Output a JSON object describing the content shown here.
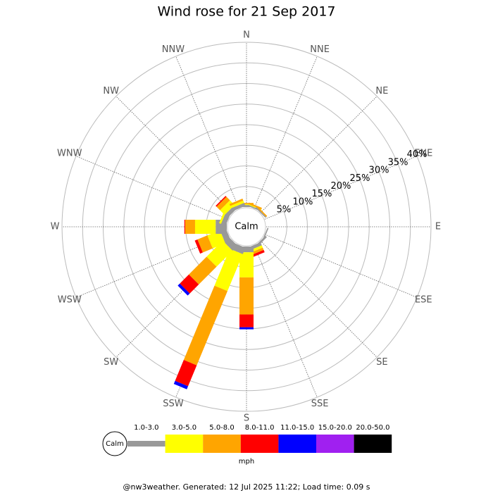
{
  "chart_data": {
    "type": "windrose",
    "title": "Wind rose for 21 Sep 2017",
    "directions": [
      "N",
      "NNE",
      "NE",
      "ENE",
      "E",
      "ESE",
      "SE",
      "SSE",
      "S",
      "SSW",
      "SW",
      "WSW",
      "W",
      "WNW",
      "NW",
      "NNW"
    ],
    "calm_label": "Calm",
    "rlim": [
      0,
      40
    ],
    "rticks": [
      {
        "value": 5,
        "label": "5%"
      },
      {
        "value": 10,
        "label": "10%"
      },
      {
        "value": 15,
        "label": "15%"
      },
      {
        "value": 20,
        "label": "20%"
      },
      {
        "value": 25,
        "label": "25%"
      },
      {
        "value": 30,
        "label": "30%"
      },
      {
        "value": 35,
        "label": "35%"
      },
      {
        "value": 40,
        "label": "40%"
      }
    ],
    "series": [
      {
        "name": "1.0-3.0",
        "color": "#999999",
        "values": [
          0.5,
          0.3,
          0.3,
          0,
          0,
          0.3,
          0.5,
          0.8,
          1.4,
          1.7,
          1.7,
          1.5,
          2.7,
          1.2,
          1.0,
          0.8
        ]
      },
      {
        "name": "3.0-5.0",
        "color": "#ffff00",
        "values": [
          0.2,
          0.2,
          0,
          0,
          0,
          0,
          0,
          0.6,
          6.1,
          9.7,
          5.5,
          3.3,
          5.0,
          0.5,
          1.6,
          0.6
        ]
      },
      {
        "name": "5.0-8.0",
        "color": "#ffa500",
        "values": [
          0.3,
          0.4,
          0.3,
          0,
          0,
          0,
          0,
          0.6,
          9.0,
          19.5,
          6.1,
          2.6,
          2.4,
          0,
          1.2,
          0.5
        ]
      },
      {
        "name": "8.0-11.0",
        "color": "#ff0000",
        "values": [
          0,
          0,
          0,
          0,
          0,
          0,
          0,
          0.6,
          3.1,
          5.5,
          3.1,
          0.7,
          0.2,
          0,
          0.3,
          0
        ]
      },
      {
        "name": "11.0-15.0",
        "color": "#0000ff",
        "values": [
          0,
          0,
          0,
          0,
          0,
          0,
          0,
          0,
          0.5,
          0.8,
          0.7,
          0,
          0,
          0,
          0,
          0
        ]
      },
      {
        "name": "15.0-20.0",
        "color": "#a020f0",
        "values": [
          0,
          0,
          0,
          0,
          0,
          0,
          0,
          0,
          0,
          0,
          0,
          0,
          0,
          0,
          0,
          0
        ]
      },
      {
        "name": "20.0-50.0",
        "color": "#000000",
        "values": [
          0,
          0,
          0,
          0,
          0,
          0,
          0,
          0,
          0,
          0,
          0,
          0,
          0,
          0,
          0,
          0
        ]
      }
    ],
    "unit_label": "mph",
    "footer": "@nw3weather.  Generated: 12 Jul 2025 11:22; Load time: 0.09 s"
  }
}
